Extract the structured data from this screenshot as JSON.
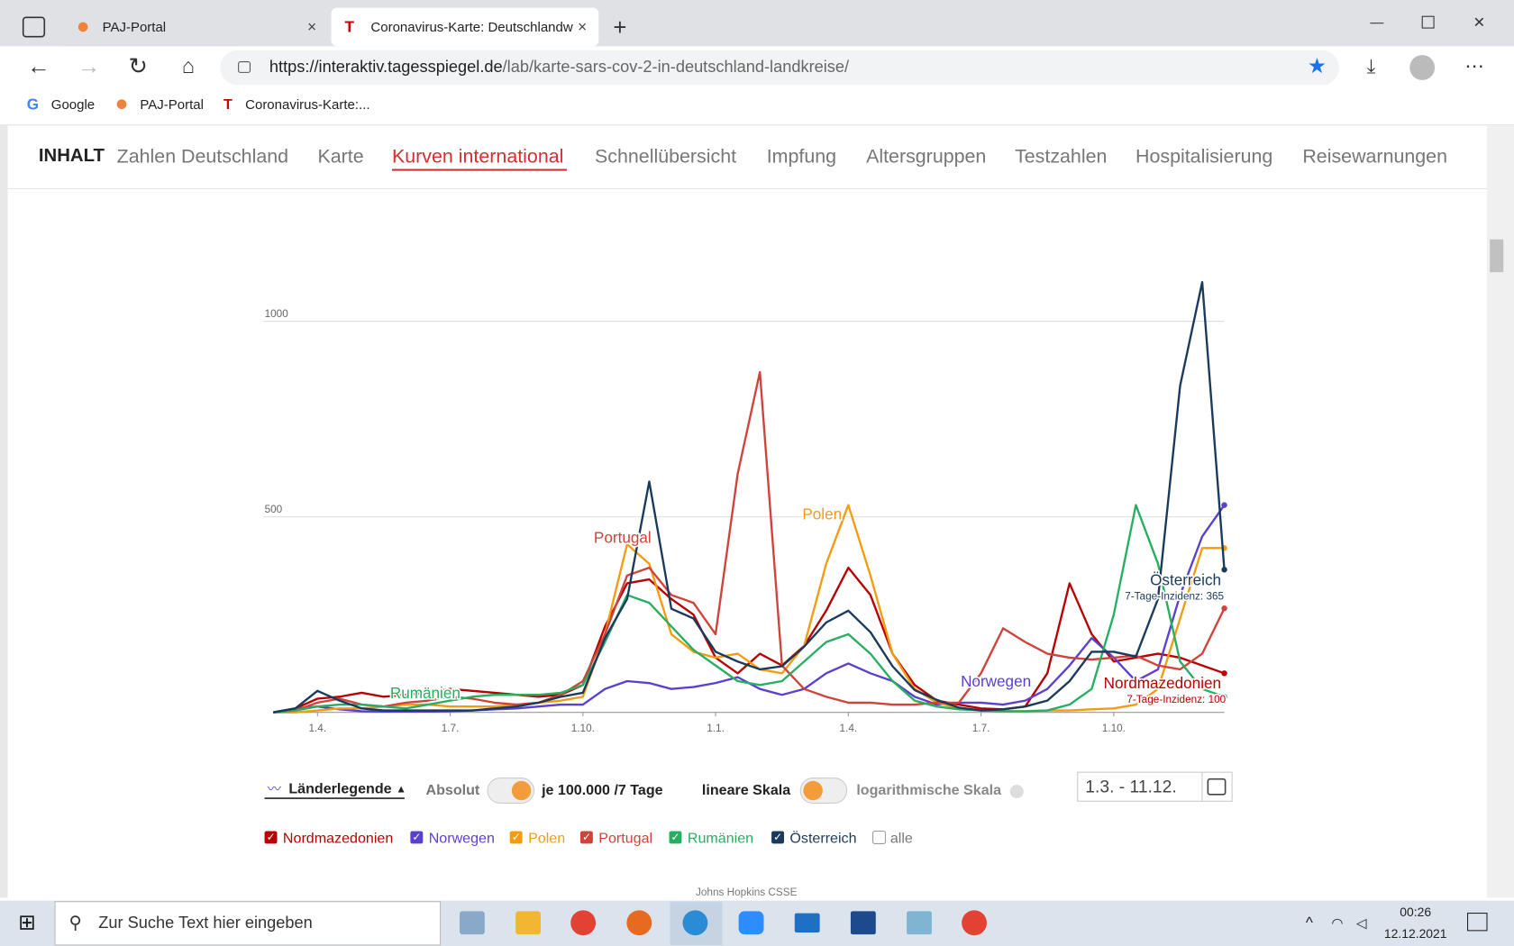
{
  "browser": {
    "tabs": [
      "PAJ-Portal",
      "Coronavirus-Karte: Deutschlandw"
    ],
    "url_host": "https://interaktiv.tagesspiegel.de",
    "url_path": "/lab/karte-sars-cov-2-in-deutschland-landkreise/",
    "bookmarks": [
      "Google",
      "PAJ-Portal",
      "Coronavirus-Karte:..."
    ]
  },
  "nav": {
    "title": "INHALT",
    "items": [
      "Zahlen Deutschland",
      "Karte",
      "Kurven international",
      "Schnellübersicht",
      "Impfung",
      "Altersgruppen",
      "Testzahlen",
      "Hospitalisierung",
      "Reisewarnungen"
    ],
    "active": 2
  },
  "chart_data": {
    "type": "line",
    "categories": [
      null,
      null,
      "1.4.",
      null,
      null,
      null,
      null,
      null,
      "1.7.",
      null,
      null,
      null,
      null,
      null,
      "1.10.",
      null,
      null,
      null,
      null,
      null,
      "1.1.",
      null,
      null,
      null,
      null,
      null,
      "1.4.",
      null,
      null,
      null,
      null,
      null,
      "1.7.",
      null,
      null,
      null,
      null,
      null,
      "1.10.",
      null,
      null,
      null,
      null,
      null
    ],
    "series": [
      {
        "name": "Nordmazedonien",
        "color": "#b80000",
        "values": [
          0,
          10,
          35,
          40,
          50,
          40,
          45,
          50,
          60,
          55,
          50,
          45,
          40,
          45,
          70,
          220,
          330,
          340,
          290,
          250,
          140,
          100,
          150,
          120,
          170,
          260,
          370,
          300,
          150,
          70,
          30,
          20,
          10,
          8,
          15,
          100,
          330,
          200,
          130,
          140,
          150,
          140,
          120,
          100
        ]
      },
      {
        "name": "Norwegen",
        "color": "#5b3fd1",
        "values": [
          0,
          10,
          15,
          8,
          3,
          2,
          2,
          2,
          3,
          5,
          8,
          10,
          15,
          20,
          20,
          60,
          80,
          75,
          60,
          65,
          75,
          90,
          60,
          45,
          60,
          100,
          125,
          100,
          80,
          40,
          20,
          25,
          25,
          20,
          30,
          60,
          120,
          190,
          140,
          80,
          110,
          300,
          450,
          530
        ]
      },
      {
        "name": "Polen",
        "color": "#f39c12",
        "values": [
          0,
          0,
          5,
          10,
          10,
          15,
          20,
          20,
          15,
          15,
          15,
          20,
          25,
          30,
          40,
          200,
          430,
          380,
          200,
          155,
          140,
          150,
          110,
          100,
          170,
          380,
          530,
          350,
          150,
          60,
          25,
          10,
          5,
          3,
          3,
          5,
          5,
          8,
          10,
          20,
          60,
          240,
          420,
          420
        ]
      },
      {
        "name": "Portugal",
        "color": "#d0433a",
        "values": [
          0,
          5,
          25,
          35,
          20,
          15,
          25,
          30,
          40,
          35,
          25,
          20,
          25,
          45,
          80,
          200,
          350,
          370,
          300,
          280,
          200,
          610,
          870,
          120,
          60,
          40,
          25,
          25,
          20,
          20,
          25,
          25,
          100,
          215,
          180,
          150,
          140,
          135,
          140,
          145,
          120,
          110,
          150,
          266
        ]
      },
      {
        "name": "Rumänien",
        "color": "#27ae60",
        "values": [
          0,
          5,
          15,
          20,
          20,
          15,
          10,
          20,
          30,
          40,
          45,
          45,
          45,
          50,
          70,
          180,
          300,
          280,
          220,
          160,
          120,
          80,
          70,
          80,
          130,
          180,
          200,
          150,
          80,
          30,
          15,
          8,
          5,
          3,
          3,
          5,
          20,
          60,
          250,
          530,
          380,
          130,
          60,
          40
        ]
      },
      {
        "name": "Österreich",
        "color": "#1a3a5c",
        "values": [
          0,
          10,
          55,
          30,
          10,
          5,
          5,
          5,
          5,
          5,
          10,
          15,
          25,
          40,
          50,
          190,
          290,
          590,
          265,
          240,
          155,
          130,
          110,
          118,
          168,
          230,
          260,
          205,
          118,
          57,
          32,
          12,
          5,
          8,
          15,
          30,
          80,
          155,
          155,
          143,
          290,
          835,
          1100,
          365
        ]
      }
    ],
    "ylim": [
      0,
      1150
    ],
    "yticks": [
      500,
      1000
    ],
    "grid": true,
    "annotations": [
      "Portugal",
      "Polen",
      "Rumänien",
      "Norwegen",
      "Österreich",
      "7-Tage-Inzidenz: 365",
      "Nordmazedonien",
      "7-Tage-Inzidenz: 100"
    ]
  },
  "controls": {
    "legend_toggle": "Länderlegende",
    "absolute": "Absolut",
    "per100k": "je 100.000 /7 Tage",
    "linear": "lineare Skala",
    "log": "logarithmische Skala",
    "date_range": "1.3. - 11.12.",
    "all": "alle"
  },
  "source": "Johns Hopkins CSSE",
  "taskbar": {
    "search": "Zur Suche Text hier eingeben",
    "time": "00:26",
    "date": "12.12.2021"
  }
}
